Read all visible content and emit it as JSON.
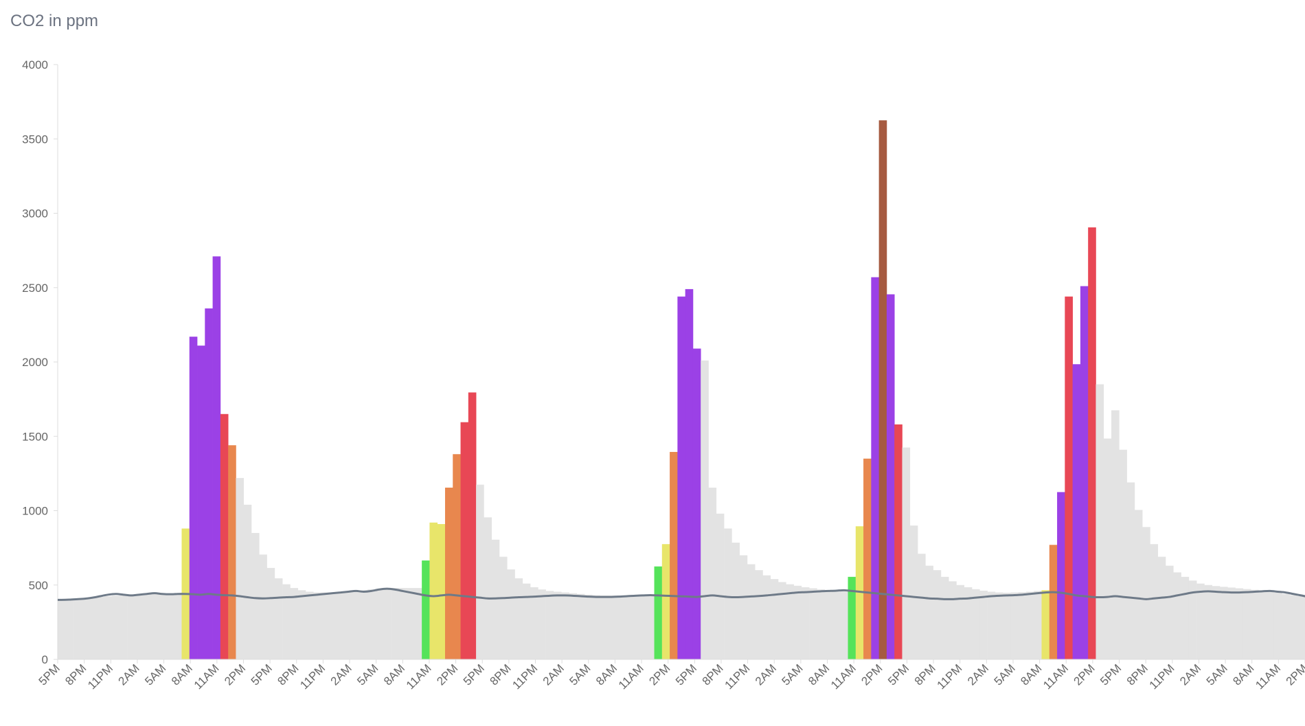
{
  "chart_data": {
    "type": "bar",
    "title": "CO2 in ppm",
    "xlabel": "",
    "ylabel": "",
    "ylim": [
      0,
      4000
    ],
    "yticks": [
      "0",
      "500",
      "1000",
      "1500",
      "2000",
      "2500",
      "3000",
      "3500",
      "4000"
    ],
    "xticks": [
      "5PM",
      "8PM",
      "11PM",
      "2AM",
      "5AM",
      "8AM",
      "11AM",
      "2PM",
      "5PM",
      "8PM",
      "11PM",
      "2AM",
      "5AM",
      "8AM",
      "11AM",
      "2PM",
      "5PM",
      "8PM",
      "11PM",
      "2AM",
      "5AM",
      "8AM",
      "11AM",
      "2PM",
      "5PM",
      "8PM",
      "11PM",
      "2AM",
      "5AM",
      "8AM",
      "11AM",
      "2PM",
      "5PM",
      "8PM",
      "11PM",
      "2AM",
      "5AM",
      "8AM",
      "11AM",
      "2PM",
      "5PM",
      "8PM",
      "11PM",
      "2AM",
      "5AM",
      "8AM",
      "11AM",
      "2PM"
    ],
    "grid": false,
    "legend": "none",
    "colors": {
      "background_bar": "#e3e3e3",
      "green": "#55e35a",
      "yellow": "#e8e56a",
      "orange": "#e8874e",
      "red": "#e84755",
      "purple": "#9b41e6",
      "brown": "#a65a40",
      "line": "#6e7a88",
      "axis": "#dddddd"
    },
    "series": [
      {
        "type": "bar",
        "values": [
          400,
          405,
          408,
          410,
          415,
          420,
          425,
          428,
          430,
          432,
          435,
          438,
          440,
          440,
          440,
          440,
          880,
          2170,
          2110,
          2360,
          2710,
          1650,
          1440,
          1220,
          1040,
          850,
          705,
          615,
          545,
          505,
          480,
          465,
          455,
          450,
          450,
          450,
          450,
          455,
          460,
          465,
          470,
          475,
          480,
          480,
          480,
          480,
          480,
          665,
          920,
          910,
          1155,
          1380,
          1595,
          1795,
          1175,
          955,
          805,
          690,
          605,
          545,
          510,
          485,
          470,
          460,
          455,
          450,
          445,
          440,
          435,
          432,
          430,
          430,
          430,
          430,
          430,
          430,
          430,
          625,
          775,
          1395,
          2440,
          2490,
          2090,
          2010,
          1155,
          980,
          880,
          785,
          700,
          640,
          600,
          565,
          540,
          520,
          505,
          495,
          485,
          478,
          470,
          465,
          460,
          460,
          555,
          895,
          1350,
          2570,
          3625,
          2455,
          1580,
          1425,
          900,
          710,
          630,
          600,
          555,
          525,
          500,
          485,
          472,
          462,
          455,
          450,
          448,
          450,
          452,
          455,
          460,
          465,
          770,
          1125,
          2440,
          1985,
          2510,
          2905,
          1850,
          1485,
          1675,
          1410,
          1190,
          1005,
          890,
          775,
          690,
          630,
          585,
          555,
          530,
          510,
          500,
          493,
          488,
          483,
          478,
          473,
          468,
          463,
          455,
          448,
          440,
          432,
          425
        ],
        "colors": [
          "gray",
          "gray",
          "gray",
          "gray",
          "gray",
          "gray",
          "gray",
          "gray",
          "gray",
          "gray",
          "gray",
          "gray",
          "gray",
          "gray",
          "gray",
          "gray",
          "yellow",
          "purple",
          "purple",
          "purple",
          "purple",
          "red",
          "orange",
          "gray",
          "gray",
          "gray",
          "gray",
          "gray",
          "gray",
          "gray",
          "gray",
          "gray",
          "gray",
          "gray",
          "gray",
          "gray",
          "gray",
          "gray",
          "gray",
          "gray",
          "gray",
          "gray",
          "gray",
          "gray",
          "gray",
          "gray",
          "gray",
          "green",
          "yellow",
          "yellow",
          "orange",
          "orange",
          "red",
          "red",
          "gray",
          "gray",
          "gray",
          "gray",
          "gray",
          "gray",
          "gray",
          "gray",
          "gray",
          "gray",
          "gray",
          "gray",
          "gray",
          "gray",
          "gray",
          "gray",
          "gray",
          "gray",
          "gray",
          "gray",
          "gray",
          "gray",
          "gray",
          "green",
          "yellow",
          "orange",
          "purple",
          "purple",
          "purple",
          "gray",
          "gray",
          "gray",
          "gray",
          "gray",
          "gray",
          "gray",
          "gray",
          "gray",
          "gray",
          "gray",
          "gray",
          "gray",
          "gray",
          "gray",
          "gray",
          "gray",
          "gray",
          "gray",
          "green",
          "yellow",
          "orange",
          "purple",
          "brown",
          "purple",
          "red",
          "gray",
          "gray",
          "gray",
          "gray",
          "gray",
          "gray",
          "gray",
          "gray",
          "gray",
          "gray",
          "gray",
          "gray",
          "gray",
          "gray",
          "gray",
          "gray",
          "gray",
          "gray",
          "yellow",
          "orange",
          "purple",
          "red",
          "purple",
          "purple",
          "red",
          "gray",
          "gray",
          "gray",
          "gray",
          "gray",
          "gray",
          "gray",
          "gray",
          "gray",
          "gray",
          "gray",
          "gray",
          "gray",
          "gray",
          "gray",
          "gray",
          "gray",
          "gray",
          "gray",
          "gray",
          "gray",
          "gray",
          "gray"
        ]
      },
      {
        "type": "line",
        "values": [
          400,
          402,
          405,
          408,
          415,
          425,
          435,
          440,
          435,
          430,
          435,
          440,
          445,
          440,
          438,
          440,
          440,
          438,
          435,
          440,
          435,
          432,
          430,
          425,
          418,
          412,
          410,
          412,
          415,
          418,
          420,
          425,
          430,
          435,
          440,
          445,
          450,
          455,
          460,
          455,
          460,
          470,
          475,
          470,
          460,
          450,
          440,
          430,
          425,
          430,
          435,
          430,
          425,
          420,
          415,
          410,
          410,
          412,
          415,
          418,
          420,
          422,
          425,
          428,
          430,
          430,
          428,
          425,
          422,
          420,
          420,
          420,
          422,
          425,
          428,
          430,
          432,
          430,
          428,
          426,
          424,
          422,
          420,
          425,
          430,
          425,
          420,
          418,
          420,
          423,
          426,
          430,
          435,
          440,
          445,
          450,
          452,
          455,
          458,
          460,
          462,
          465,
          460,
          455,
          450,
          445,
          440,
          435,
          430,
          425,
          420,
          415,
          410,
          408,
          405,
          405,
          408,
          410,
          415,
          420,
          425,
          428,
          430,
          432,
          435,
          440,
          445,
          450,
          452,
          448,
          440,
          430,
          425,
          420,
          418,
          420,
          425,
          420,
          415,
          410,
          405,
          410,
          415,
          420,
          430,
          440,
          450,
          455,
          458,
          455,
          452,
          450,
          450,
          452,
          455,
          458,
          460,
          455,
          450,
          440,
          430,
          420,
          415,
          410,
          405,
          402,
          400
        ]
      }
    ]
  }
}
